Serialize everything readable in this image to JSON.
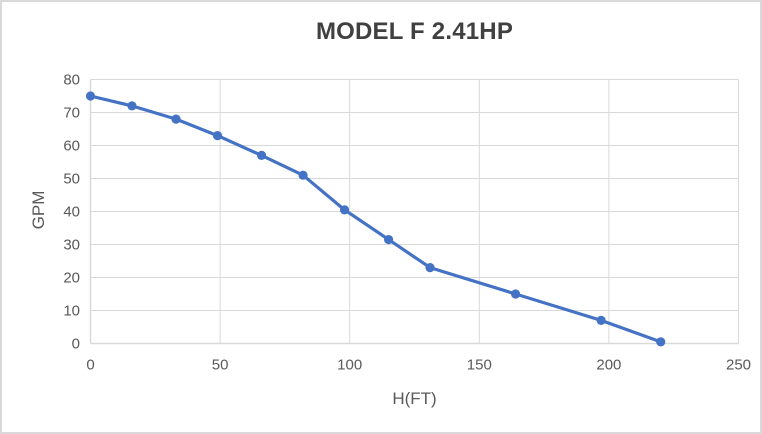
{
  "chart_data": {
    "type": "line",
    "title": "MODEL F 2.41HP",
    "xlabel": "H(FT)",
    "ylabel": "GPM",
    "xlim": [
      0,
      250
    ],
    "ylim": [
      0,
      80
    ],
    "x_ticks": [
      0,
      50,
      100,
      150,
      200,
      250
    ],
    "y_ticks": [
      0,
      10,
      20,
      30,
      40,
      50,
      60,
      70,
      80
    ],
    "grid": true,
    "legend_position": "none",
    "series": [
      {
        "name": "GPM vs H(FT)",
        "marker": "circle",
        "color": "#4472c4",
        "x": [
          0,
          16,
          33,
          49,
          66,
          82,
          98,
          115,
          131,
          164,
          197,
          220
        ],
        "y": [
          75,
          72,
          68,
          63,
          57,
          51,
          40.5,
          31.5,
          23,
          15,
          7,
          0.5
        ]
      }
    ],
    "colors": {
      "series_line": "#4472c4",
      "marker_fill": "#4472c4",
      "gridline": "#d9d9d9",
      "axis_line": "#d9d9d9",
      "tick_text": "#595959",
      "axis_title_text": "#595959",
      "title_text": "#404040",
      "background": "#ffffff",
      "frame_border": "#d9d9d9"
    }
  }
}
